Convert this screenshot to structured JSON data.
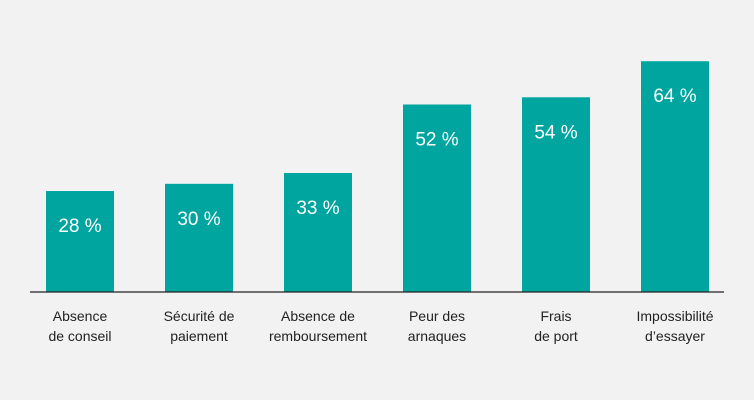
{
  "chart_data": {
    "type": "bar",
    "categories": [
      [
        "Absence",
        "de conseil"
      ],
      [
        "Sécurité de",
        "paiement"
      ],
      [
        "Absence de",
        "remboursement"
      ],
      [
        "Peur des",
        "arnaques"
      ],
      [
        "Frais",
        "de port"
      ],
      [
        "Impossibilité",
        "d’essayer"
      ]
    ],
    "values": [
      28,
      30,
      33,
      52,
      54,
      64
    ],
    "value_labels": [
      "28 %",
      "30 %",
      "33 %",
      "52 %",
      "54 %",
      "64 %"
    ],
    "ylim": [
      0,
      70
    ],
    "grid": false,
    "bar_color": "#00a5a0",
    "axis_color": "#222222",
    "background": "#f2f2f2"
  }
}
